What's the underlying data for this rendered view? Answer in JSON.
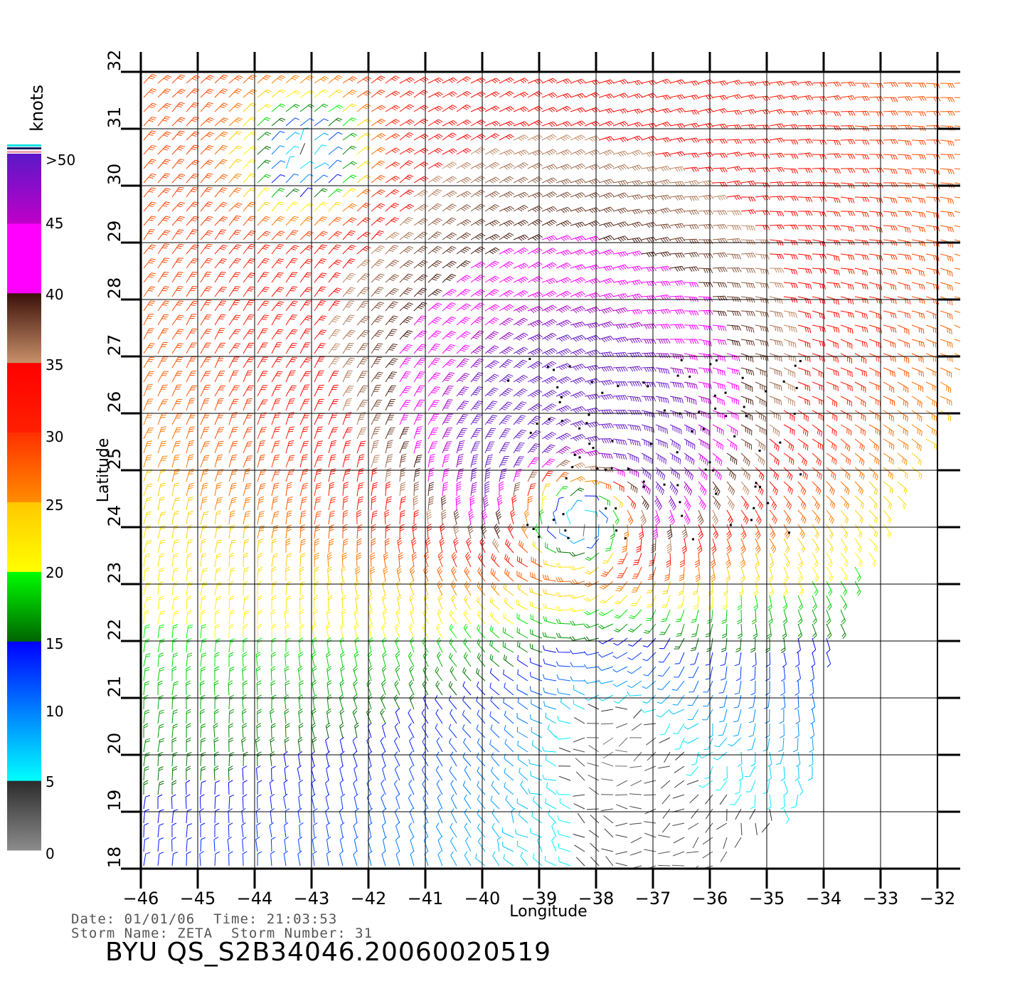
{
  "chart_data": {
    "type": "wind-barb-map",
    "xlabel": "Longitude",
    "ylabel": "Latitude",
    "xlim": [
      -46,
      -32
    ],
    "ylim": [
      18,
      32
    ],
    "x_ticks": [
      -46,
      -45,
      -44,
      -43,
      -42,
      -41,
      -40,
      -39,
      -38,
      -37,
      -36,
      -35,
      -34,
      -33,
      -32
    ],
    "y_ticks": [
      18,
      19,
      20,
      21,
      22,
      23,
      24,
      25,
      26,
      27,
      28,
      29,
      30,
      31,
      32
    ],
    "grid": true,
    "storm_center": {
      "lon": -38.4,
      "lat": 24.5
    },
    "swath_edge": [
      [
        -31.7,
        32
      ],
      [
        -31.6,
        26.8
      ],
      [
        -32.4,
        25.0
      ],
      [
        -33.4,
        23.0
      ],
      [
        -34.0,
        21.6
      ],
      [
        -34.0,
        20.0
      ],
      [
        -34.5,
        19.2
      ],
      [
        -35.5,
        18.3
      ],
      [
        -36.0,
        18.0
      ]
    ],
    "colorbar": {
      "unit": "knots",
      "labels": [
        ">50",
        "45",
        "40",
        "35",
        "30",
        "25",
        "20",
        "15",
        "10",
        "5",
        "0"
      ],
      "bands": [
        {
          "from": 0,
          "to": 5,
          "color_bottom": "#8c8c8c",
          "color_top": "#2b2b2b"
        },
        {
          "from": 5,
          "to": 15,
          "color_bottom": "#00ffff",
          "color_top": "#0000ff"
        },
        {
          "from": 15,
          "to": 20,
          "color_bottom": "#006400",
          "color_top": "#00ff00"
        },
        {
          "from": 20,
          "to": 25,
          "color_bottom": "#ffff00",
          "color_top": "#ffc800"
        },
        {
          "from": 25,
          "to": 30,
          "color_bottom": "#ff8c00",
          "color_top": "#ff3000"
        },
        {
          "from": 30,
          "to": 35,
          "color_bottom": "#ff2000",
          "color_top": "#ff0000"
        },
        {
          "from": 35,
          "to": 40,
          "color_bottom": "#c8906a",
          "color_top": "#3a1008"
        },
        {
          "from": 40,
          "to": 45,
          "color_bottom": "#ff00ff",
          "color_top": "#ff00ff"
        },
        {
          "from": 45,
          "to": 50,
          "color_bottom": "#c000c8",
          "color_top": "#5a18c8"
        }
      ]
    },
    "wind_field": {
      "model": "cyclonic vortex",
      "center_lon": -38.4,
      "center_lat": 24.5,
      "peak_speed_kt": 47,
      "radius_of_max_wind_deg": 1.4,
      "ambient_flow": "northeasterly trade flow 12-20 kt",
      "calm_regions": [
        {
          "lon": -43.2,
          "lat": 30.5,
          "note": "light winds 0-5 kt"
        },
        {
          "lon": -37.6,
          "lat": 20.1,
          "note": "light winds 0-5 kt"
        }
      ]
    }
  },
  "footer": {
    "date_label": "Date: 01/01/06",
    "time_label": "Time: 21:03:53",
    "storm_name_label": "Storm Name: ZETA",
    "storm_number_label": "Storm Number: 31",
    "product_id": "BYU QS_S2B34046.20060020519"
  }
}
